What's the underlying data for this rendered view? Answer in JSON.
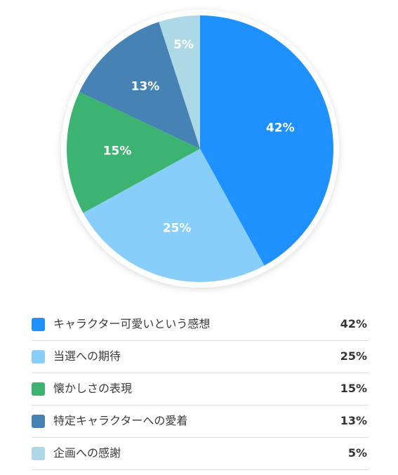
{
  "chart_data": {
    "type": "pie",
    "slices": [
      {
        "label": "キャラクター可愛いという感想",
        "value": 42,
        "display": "42%",
        "color": "#1e90ff"
      },
      {
        "label": "当選への期待",
        "value": 25,
        "display": "25%",
        "color": "#87cefa"
      },
      {
        "label": "懐かしさの表現",
        "value": 15,
        "display": "15%",
        "color": "#3cb371"
      },
      {
        "label": "特定キャラクターへの愛着",
        "value": 13,
        "display": "13%",
        "color": "#4682b4"
      },
      {
        "label": "企画への感謝",
        "value": 5,
        "display": "5%",
        "color": "#add8e6"
      }
    ],
    "legend_position": "bottom",
    "start": "top",
    "direction": "clockwise"
  }
}
